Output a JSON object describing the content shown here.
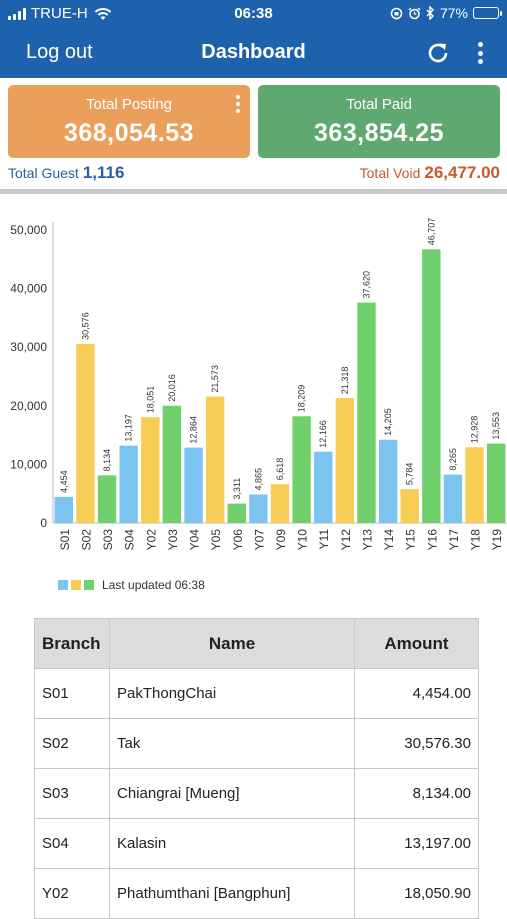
{
  "status_bar": {
    "carrier": "TRUE-H",
    "time": "06:38",
    "battery": "77%",
    "battery_level": 0.77
  },
  "app_bar": {
    "logout_label": "Log out",
    "title": "Dashboard",
    "refresh_icon": "refresh-icon",
    "more_icon": "more-vertical-icon"
  },
  "summary": {
    "total_posting_label": "Total Posting",
    "total_posting_value": "368,054.53",
    "total_paid_label": "Total Paid",
    "total_paid_value": "363,854.25",
    "total_guest_label": "Total Guest",
    "total_guest_value": "1,116",
    "total_void_label": "Total Void",
    "total_void_value": "26,477.00"
  },
  "colors": {
    "header": "#1e62ad",
    "posting": "#eaa05a",
    "paid": "#5fa970",
    "blue": "#7cc4f0",
    "yellow": "#f7cd55",
    "green": "#6fd06c"
  },
  "chart_data": {
    "type": "bar",
    "categories": [
      "S01",
      "S02",
      "S03",
      "S04",
      "Y02",
      "Y03",
      "Y04",
      "Y05",
      "Y06",
      "Y07",
      "Y09",
      "Y10",
      "Y11",
      "Y12",
      "Y13",
      "Y14",
      "Y15",
      "Y16",
      "Y17",
      "Y18",
      "Y19"
    ],
    "values": [
      4454,
      30576,
      8134,
      13197,
      18051,
      20016,
      12864,
      21573,
      3311,
      4865,
      6618,
      18209,
      12166,
      21318,
      37620,
      14205,
      5784,
      46707,
      8265,
      12928,
      13553
    ],
    "value_labels": [
      "4,454",
      "30,576",
      "8,134",
      "13,197",
      "18,051",
      "20,016",
      "12,864",
      "21,573",
      "3,311",
      "4,865",
      "6,618",
      "18,209",
      "12,166",
      "21,318",
      "37,620",
      "14,205",
      "5,784",
      "46,707",
      "8,265",
      "12,928",
      "13,553"
    ],
    "bar_colors": [
      "#7cc4f0",
      "#f7cd55",
      "#6fd06c",
      "#7cc4f0",
      "#f7cd55",
      "#6fd06c",
      "#7cc4f0",
      "#f7cd55",
      "#6fd06c",
      "#7cc4f0",
      "#f7cd55",
      "#6fd06c",
      "#7cc4f0",
      "#f7cd55",
      "#6fd06c",
      "#7cc4f0",
      "#f7cd55",
      "#6fd06c",
      "#7cc4f0",
      "#f7cd55",
      "#6fd06c"
    ],
    "yticks": [
      "0",
      "10,000",
      "20,000",
      "30,000",
      "40,000",
      "50,000"
    ],
    "ylim": [
      0,
      50000
    ],
    "legend": "Last updated 06:38",
    "legend_colors": [
      "#7cc4f0",
      "#f7cd55",
      "#6fd06c"
    ]
  },
  "table": {
    "headers": {
      "branch": "Branch",
      "name": "Name",
      "amount": "Amount"
    },
    "rows": [
      {
        "branch": "S01",
        "name": "PakThongChai",
        "amount": "4,454.00"
      },
      {
        "branch": "S02",
        "name": "Tak",
        "amount": "30,576.30"
      },
      {
        "branch": "S03",
        "name": "Chiangrai [Mueng]",
        "amount": "8,134.00"
      },
      {
        "branch": "S04",
        "name": "Kalasin",
        "amount": "13,197.00"
      },
      {
        "branch": "Y02",
        "name": "Phathumthani [Bangphun]",
        "amount": "18,050.90"
      }
    ]
  }
}
